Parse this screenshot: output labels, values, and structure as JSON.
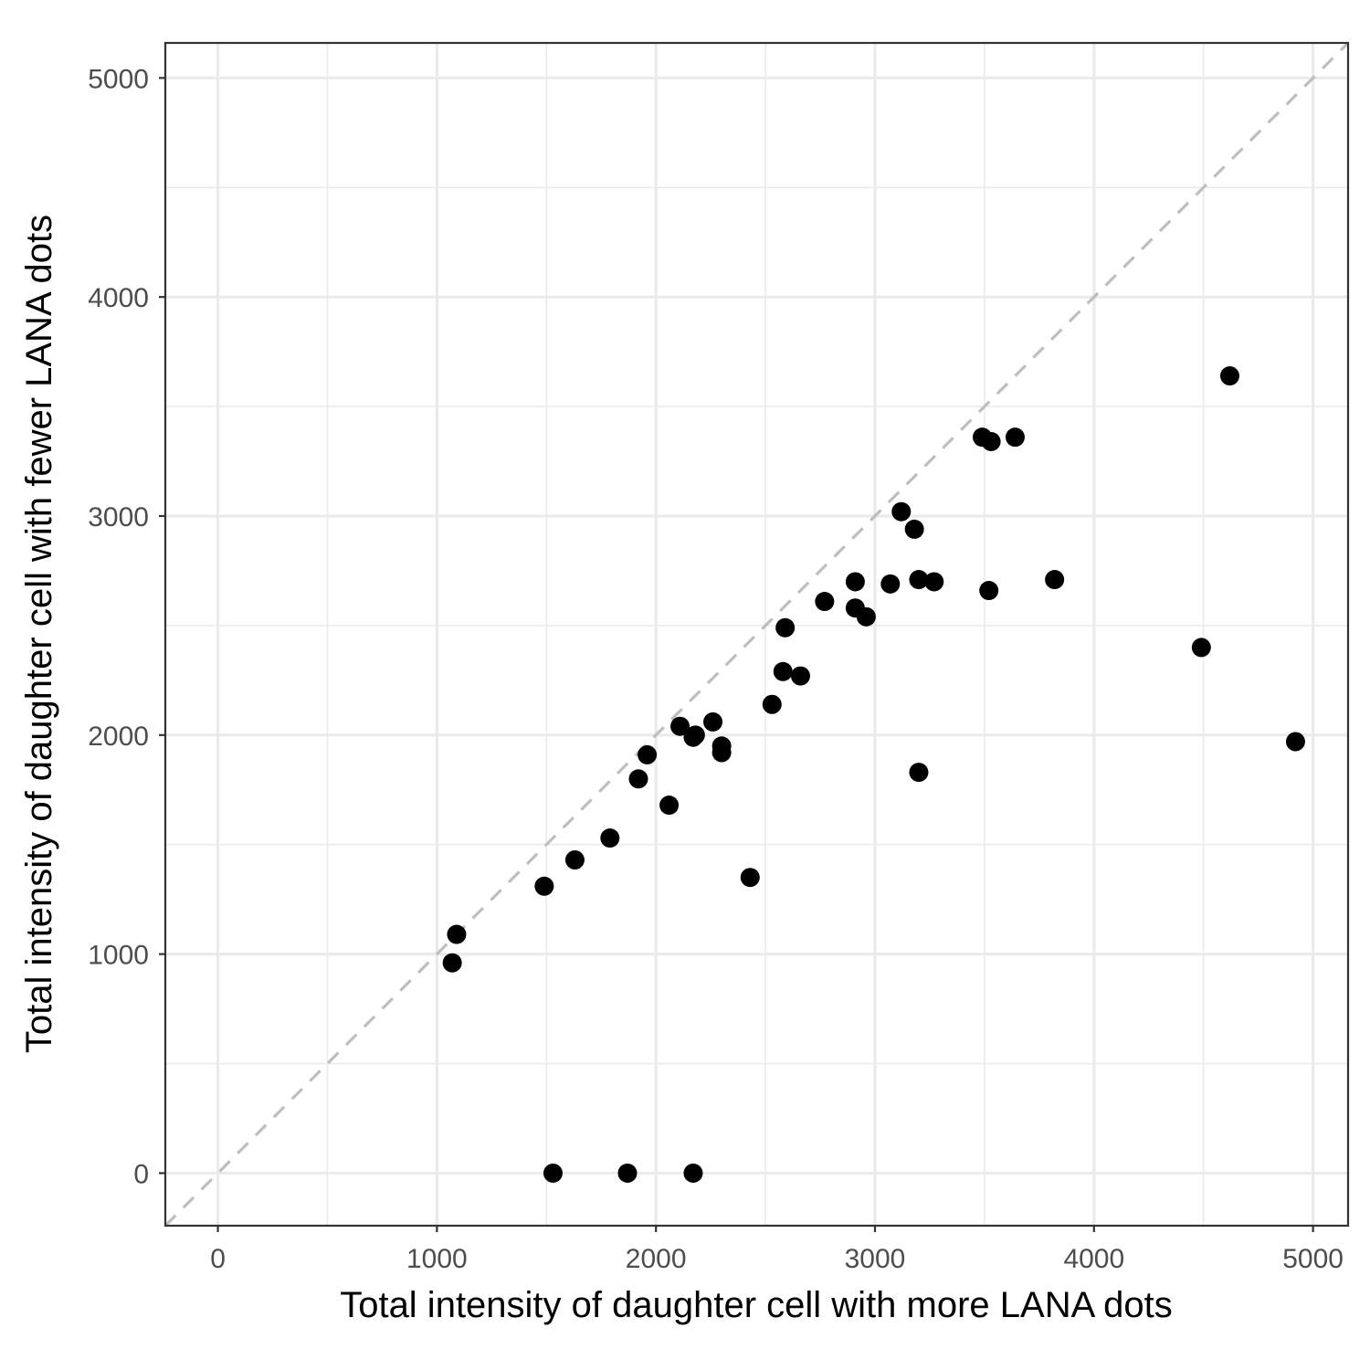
{
  "chart_data": {
    "type": "scatter",
    "title": "",
    "xlabel": "Total intensity of daughter cell with more LANA dots",
    "ylabel": "Total intensity of daughter cell with fewer LANA dots",
    "xlim": [
      -240,
      5160
    ],
    "ylim": [
      -240,
      5160
    ],
    "x_ticks": [
      0,
      1000,
      2000,
      3000,
      4000,
      5000
    ],
    "y_ticks": [
      0,
      1000,
      2000,
      3000,
      4000,
      5000
    ],
    "x_tick_labels": [
      "0",
      "1000",
      "2000",
      "3000",
      "4000",
      "5000"
    ],
    "y_tick_labels": [
      "0",
      "1000",
      "2000",
      "3000",
      "4000",
      "5000"
    ],
    "x_minor": [
      500,
      1500,
      2500,
      3500,
      4500
    ],
    "y_minor": [
      500,
      1500,
      2500,
      3500,
      4500
    ],
    "grid": true,
    "reference_line": {
      "type": "identity",
      "style": "dashed",
      "color": "#bebebe"
    },
    "point_color": "#000000",
    "series": [
      {
        "points": [
          {
            "x": 1070,
            "y": 960
          },
          {
            "x": 1090,
            "y": 1090
          },
          {
            "x": 1490,
            "y": 1310
          },
          {
            "x": 1630,
            "y": 1430
          },
          {
            "x": 1790,
            "y": 1530
          },
          {
            "x": 1920,
            "y": 1800
          },
          {
            "x": 1960,
            "y": 1910
          },
          {
            "x": 2060,
            "y": 1680
          },
          {
            "x": 2110,
            "y": 2040
          },
          {
            "x": 2170,
            "y": 1990
          },
          {
            "x": 2180,
            "y": 2000
          },
          {
            "x": 2260,
            "y": 2060
          },
          {
            "x": 2300,
            "y": 1950
          },
          {
            "x": 2300,
            "y": 1920
          },
          {
            "x": 2430,
            "y": 1350
          },
          {
            "x": 2530,
            "y": 2140
          },
          {
            "x": 2580,
            "y": 2290
          },
          {
            "x": 2590,
            "y": 2490
          },
          {
            "x": 2660,
            "y": 2270
          },
          {
            "x": 2770,
            "y": 2610
          },
          {
            "x": 2910,
            "y": 2700
          },
          {
            "x": 2910,
            "y": 2580
          },
          {
            "x": 2960,
            "y": 2540
          },
          {
            "x": 3070,
            "y": 2690
          },
          {
            "x": 3120,
            "y": 3020
          },
          {
            "x": 3180,
            "y": 2940
          },
          {
            "x": 3200,
            "y": 2710
          },
          {
            "x": 3270,
            "y": 2700
          },
          {
            "x": 3200,
            "y": 1830
          },
          {
            "x": 3490,
            "y": 3360
          },
          {
            "x": 3530,
            "y": 3340
          },
          {
            "x": 3520,
            "y": 2660
          },
          {
            "x": 3640,
            "y": 3360
          },
          {
            "x": 3820,
            "y": 2710
          },
          {
            "x": 4490,
            "y": 2400
          },
          {
            "x": 4620,
            "y": 3640
          },
          {
            "x": 4920,
            "y": 1970
          },
          {
            "x": 1530,
            "y": 0
          },
          {
            "x": 1870,
            "y": 0
          },
          {
            "x": 2170,
            "y": 0
          }
        ]
      }
    ]
  }
}
